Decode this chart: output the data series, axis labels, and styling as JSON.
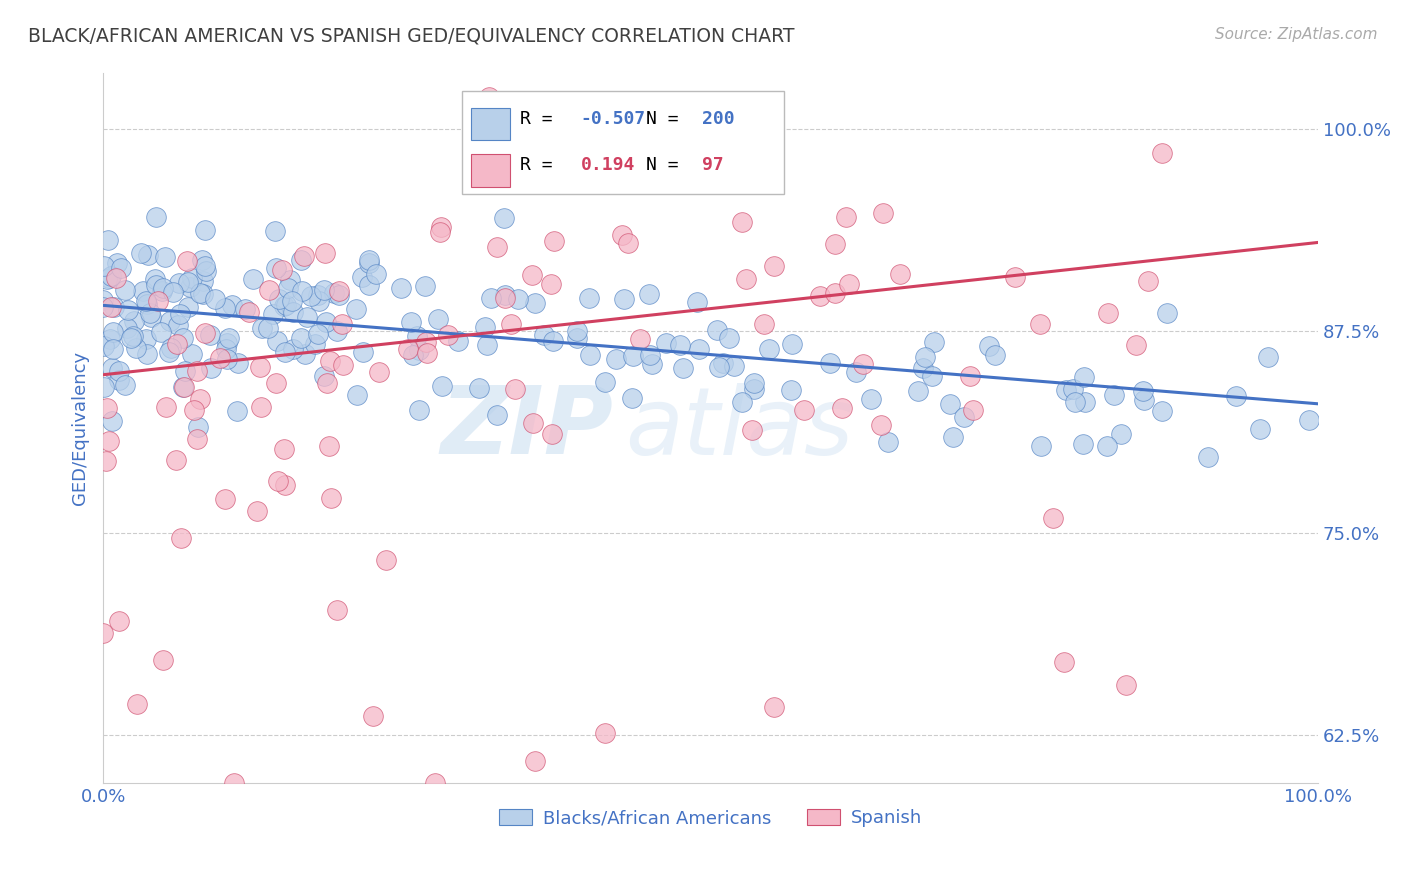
{
  "title": "BLACK/AFRICAN AMERICAN VS SPANISH GED/EQUIVALENCY CORRELATION CHART",
  "source": "Source: ZipAtlas.com",
  "ylabel": "GED/Equivalency",
  "xlim": [
    0.0,
    1.0
  ],
  "ylim": [
    0.595,
    1.035
  ],
  "yticks": [
    0.625,
    0.75,
    0.875,
    1.0
  ],
  "ytick_labels": [
    "62.5%",
    "75.0%",
    "87.5%",
    "100.0%"
  ],
  "xticks": [
    0.0,
    1.0
  ],
  "xtick_labels": [
    "0.0%",
    "100.0%"
  ],
  "blue_R": "-0.507",
  "blue_N": "200",
  "pink_R": "0.194",
  "pink_N": "97",
  "blue_color": "#b8d0ea",
  "pink_color": "#f5b8c8",
  "blue_edge_color": "#5585c5",
  "pink_edge_color": "#d05070",
  "blue_line_color": "#4472c4",
  "pink_line_color": "#d04060",
  "legend_label_blue": "Blacks/African Americans",
  "legend_label_pink": "Spanish",
  "watermark_zip": "ZIP",
  "watermark_atlas": "atlas",
  "background_color": "#ffffff",
  "grid_color": "#cccccc",
  "title_color": "#404040",
  "axis_label_color": "#4472c4",
  "blue_line_start_x": 0.0,
  "blue_line_start_y": 0.891,
  "blue_line_end_x": 1.0,
  "blue_line_end_y": 0.83,
  "pink_line_start_x": 0.0,
  "pink_line_start_y": 0.848,
  "pink_line_end_x": 1.0,
  "pink_line_end_y": 0.93
}
